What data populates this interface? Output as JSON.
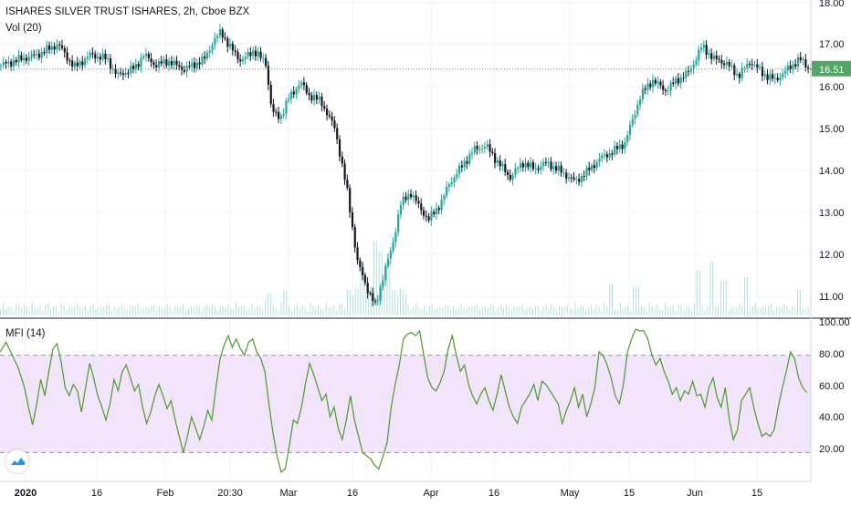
{
  "chart_title": "ISHARES SILVER TRUST ISHARES, 2h, Cboe BZX",
  "volume_label": "Vol (20)",
  "indicator_label": "MFI (14)",
  "chart_data": [
    {
      "type": "candlestick",
      "title": "ISHARES SILVER TRUST ISHARES, 2h, Cboe BZX",
      "x_tick_labels": [
        "2020",
        "16",
        "Feb",
        "20:30",
        "Mar",
        "16",
        "Apr",
        "16",
        "May",
        "15",
        "Jun",
        "15"
      ],
      "y_tick_labels": [
        "18.00",
        "17.00",
        "16.00",
        "15.00",
        "14.00",
        "13.00",
        "12.00",
        "11.00"
      ],
      "ylim": [
        10.6,
        18.1
      ],
      "last_price": 16.51,
      "last_price_label": "16.51",
      "last_price_color": "#53a466",
      "up_color": "#26a69a",
      "down_color": "#131722",
      "volume_color": "#26a69a",
      "grid": true,
      "close_path": [
        [
          0,
          16.6
        ],
        [
          10,
          16.75
        ],
        [
          18,
          16.85
        ],
        [
          28,
          17.1
        ],
        [
          36,
          16.55
        ],
        [
          44,
          16.85
        ],
        [
          52,
          16.75
        ],
        [
          57,
          16.35
        ],
        [
          66,
          16.55
        ],
        [
          70,
          16.85
        ],
        [
          76,
          16.6
        ],
        [
          82,
          16.7
        ],
        [
          90,
          16.5
        ],
        [
          100,
          16.75
        ],
        [
          104,
          17.15
        ],
        [
          108,
          17.4
        ],
        [
          112,
          17.05
        ],
        [
          118,
          16.7
        ],
        [
          124,
          16.95
        ],
        [
          130,
          16.65
        ],
        [
          133,
          15.5
        ],
        [
          137,
          15.35
        ],
        [
          141,
          15.8
        ],
        [
          147,
          16.2
        ],
        [
          151,
          15.9
        ],
        [
          157,
          15.75
        ],
        [
          164,
          15.1
        ],
        [
          170,
          13.6
        ],
        [
          175,
          11.95
        ],
        [
          180,
          11.3
        ],
        [
          184,
          10.9
        ],
        [
          188,
          11.7
        ],
        [
          192,
          12.3
        ],
        [
          196,
          13.3
        ],
        [
          201,
          13.6
        ],
        [
          206,
          13.2
        ],
        [
          210,
          12.95
        ],
        [
          216,
          13.35
        ],
        [
          220,
          13.8
        ],
        [
          226,
          14.2
        ],
        [
          232,
          14.6
        ],
        [
          238,
          14.7
        ],
        [
          244,
          14.3
        ],
        [
          250,
          13.95
        ],
        [
          256,
          14.3
        ],
        [
          262,
          14.15
        ],
        [
          268,
          14.3
        ],
        [
          276,
          14.05
        ],
        [
          282,
          13.85
        ],
        [
          288,
          14.1
        ],
        [
          294,
          14.4
        ],
        [
          300,
          14.55
        ],
        [
          306,
          14.75
        ],
        [
          310,
          15.3
        ],
        [
          314,
          15.9
        ],
        [
          320,
          16.25
        ],
        [
          326,
          16.0
        ],
        [
          332,
          16.25
        ],
        [
          338,
          16.45
        ],
        [
          344,
          17.05
        ],
        [
          350,
          16.75
        ],
        [
          356,
          16.65
        ],
        [
          362,
          16.35
        ],
        [
          368,
          16.7
        ],
        [
          374,
          16.4
        ],
        [
          380,
          16.25
        ],
        [
          386,
          16.5
        ],
        [
          392,
          16.75
        ],
        [
          397,
          16.51
        ]
      ],
      "volume_spikes": [
        [
          184,
          0.9
        ],
        [
          187,
          0.75
        ],
        [
          191,
          0.6
        ],
        [
          178,
          0.55
        ],
        [
          132,
          0.35
        ],
        [
          140,
          0.4
        ],
        [
          300,
          0.5
        ],
        [
          312,
          0.45
        ],
        [
          343,
          0.7
        ],
        [
          349,
          0.85
        ],
        [
          355,
          0.55
        ],
        [
          366,
          0.6
        ],
        [
          392,
          0.4
        ]
      ]
    },
    {
      "type": "line",
      "title": "MFI (14)",
      "y_tick_labels": [
        "100.00",
        "80.00",
        "60.00",
        "40.00",
        "20.00"
      ],
      "ylim": [
        0,
        100
      ],
      "upper_band": 80,
      "lower_band": 20,
      "band_fill": "#f2e4fb",
      "line_color": "#4c9a2a",
      "values": [
        [
          0,
          82
        ],
        [
          3,
          88
        ],
        [
          6,
          80
        ],
        [
          9,
          72
        ],
        [
          12,
          60
        ],
        [
          14,
          48
        ],
        [
          16,
          37
        ],
        [
          18,
          50
        ],
        [
          20,
          65
        ],
        [
          22,
          55
        ],
        [
          24,
          70
        ],
        [
          26,
          84
        ],
        [
          28,
          87
        ],
        [
          30,
          76
        ],
        [
          32,
          60
        ],
        [
          34,
          55
        ],
        [
          36,
          62
        ],
        [
          38,
          58
        ],
        [
          40,
          45
        ],
        [
          42,
          60
        ],
        [
          44,
          75
        ],
        [
          46,
          66
        ],
        [
          48,
          55
        ],
        [
          50,
          48
        ],
        [
          52,
          40
        ],
        [
          54,
          50
        ],
        [
          56,
          65
        ],
        [
          58,
          58
        ],
        [
          60,
          70
        ],
        [
          62,
          74
        ],
        [
          64,
          66
        ],
        [
          66,
          58
        ],
        [
          68,
          62
        ],
        [
          70,
          48
        ],
        [
          72,
          38
        ],
        [
          74,
          45
        ],
        [
          76,
          55
        ],
        [
          78,
          62
        ],
        [
          80,
          55
        ],
        [
          82,
          47
        ],
        [
          84,
          52
        ],
        [
          86,
          40
        ],
        [
          88,
          30
        ],
        [
          90,
          20
        ],
        [
          92,
          30
        ],
        [
          94,
          42
        ],
        [
          96,
          35
        ],
        [
          98,
          28
        ],
        [
          100,
          36
        ],
        [
          102,
          46
        ],
        [
          104,
          40
        ],
        [
          106,
          60
        ],
        [
          108,
          78
        ],
        [
          110,
          86
        ],
        [
          112,
          92
        ],
        [
          114,
          85
        ],
        [
          116,
          90
        ],
        [
          118,
          84
        ],
        [
          120,
          80
        ],
        [
          122,
          88
        ],
        [
          124,
          90
        ],
        [
          126,
          82
        ],
        [
          128,
          78
        ],
        [
          130,
          70
        ],
        [
          132,
          50
        ],
        [
          134,
          32
        ],
        [
          136,
          18
        ],
        [
          138,
          8
        ],
        [
          140,
          10
        ],
        [
          142,
          24
        ],
        [
          144,
          40
        ],
        [
          146,
          38
        ],
        [
          148,
          48
        ],
        [
          150,
          63
        ],
        [
          152,
          75
        ],
        [
          154,
          68
        ],
        [
          156,
          60
        ],
        [
          158,
          52
        ],
        [
          160,
          56
        ],
        [
          162,
          42
        ],
        [
          164,
          48
        ],
        [
          166,
          35
        ],
        [
          168,
          28
        ],
        [
          170,
          40
        ],
        [
          172,
          55
        ],
        [
          174,
          40
        ],
        [
          176,
          30
        ],
        [
          178,
          20
        ],
        [
          180,
          18
        ],
        [
          182,
          16
        ],
        [
          184,
          12
        ],
        [
          186,
          10
        ],
        [
          188,
          18
        ],
        [
          190,
          26
        ],
        [
          192,
          48
        ],
        [
          194,
          62
        ],
        [
          196,
          74
        ],
        [
          198,
          90
        ],
        [
          200,
          93
        ],
        [
          202,
          94
        ],
        [
          204,
          92
        ],
        [
          206,
          95
        ],
        [
          208,
          80
        ],
        [
          210,
          66
        ],
        [
          212,
          60
        ],
        [
          214,
          58
        ],
        [
          216,
          63
        ],
        [
          218,
          70
        ],
        [
          220,
          84
        ],
        [
          222,
          92
        ],
        [
          224,
          80
        ],
        [
          226,
          70
        ],
        [
          228,
          74
        ],
        [
          230,
          62
        ],
        [
          232,
          55
        ],
        [
          234,
          50
        ],
        [
          236,
          56
        ],
        [
          238,
          60
        ],
        [
          240,
          52
        ],
        [
          242,
          46
        ],
        [
          244,
          56
        ],
        [
          246,
          68
        ],
        [
          248,
          58
        ],
        [
          250,
          48
        ],
        [
          252,
          42
        ],
        [
          254,
          38
        ],
        [
          256,
          48
        ],
        [
          258,
          52
        ],
        [
          260,
          56
        ],
        [
          262,
          62
        ],
        [
          264,
          52
        ],
        [
          266,
          64
        ],
        [
          268,
          62
        ],
        [
          270,
          58
        ],
        [
          272,
          54
        ],
        [
          274,
          50
        ],
        [
          276,
          38
        ],
        [
          278,
          46
        ],
        [
          280,
          52
        ],
        [
          282,
          60
        ],
        [
          284,
          48
        ],
        [
          286,
          56
        ],
        [
          288,
          42
        ],
        [
          290,
          50
        ],
        [
          292,
          60
        ],
        [
          294,
          82
        ],
        [
          296,
          80
        ],
        [
          298,
          74
        ],
        [
          300,
          66
        ],
        [
          302,
          55
        ],
        [
          304,
          50
        ],
        [
          306,
          62
        ],
        [
          308,
          82
        ],
        [
          310,
          90
        ],
        [
          312,
          96
        ],
        [
          314,
          95
        ],
        [
          316,
          95
        ],
        [
          318,
          90
        ],
        [
          320,
          80
        ],
        [
          322,
          74
        ],
        [
          324,
          78
        ],
        [
          326,
          70
        ],
        [
          328,
          64
        ],
        [
          330,
          56
        ],
        [
          332,
          60
        ],
        [
          334,
          52
        ],
        [
          336,
          58
        ],
        [
          338,
          56
        ],
        [
          340,
          64
        ],
        [
          342,
          55
        ],
        [
          344,
          56
        ],
        [
          346,
          48
        ],
        [
          348,
          60
        ],
        [
          350,
          66
        ],
        [
          352,
          54
        ],
        [
          354,
          48
        ],
        [
          356,
          60
        ],
        [
          358,
          40
        ],
        [
          360,
          28
        ],
        [
          362,
          34
        ],
        [
          364,
          52
        ],
        [
          366,
          56
        ],
        [
          368,
          60
        ],
        [
          370,
          48
        ],
        [
          372,
          38
        ],
        [
          374,
          30
        ],
        [
          376,
          32
        ],
        [
          378,
          30
        ],
        [
          380,
          34
        ],
        [
          382,
          48
        ],
        [
          384,
          60
        ],
        [
          386,
          70
        ],
        [
          388,
          82
        ],
        [
          390,
          78
        ],
        [
          392,
          66
        ],
        [
          394,
          60
        ],
        [
          396,
          57
        ]
      ]
    }
  ]
}
